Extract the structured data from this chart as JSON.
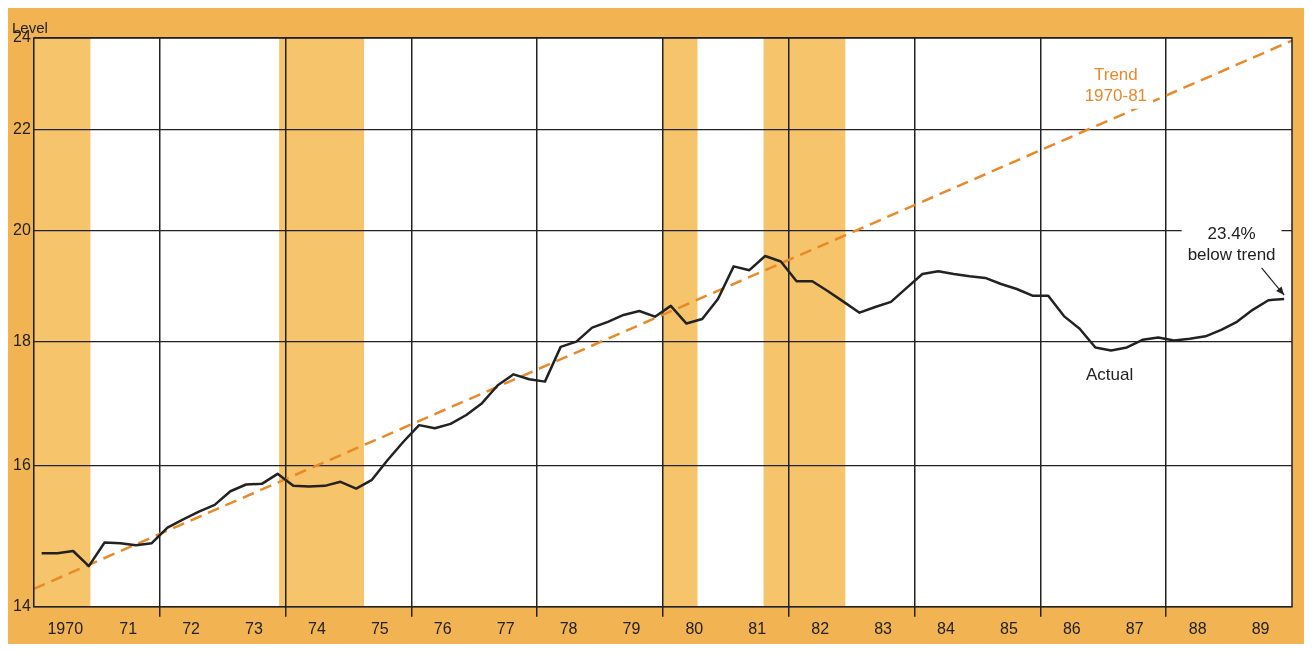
{
  "chart_data": {
    "type": "line",
    "ylabel": "Level",
    "log": "y",
    "ylim": [
      14,
      24
    ],
    "yticks": [
      14,
      16,
      18,
      20,
      22,
      24
    ],
    "xlim": [
      1969.5,
      1989.5
    ],
    "xticks": [
      {
        "value": 1970,
        "label": "1970"
      },
      {
        "value": 1971,
        "label": "71"
      },
      {
        "value": 1971.5,
        "label": null
      },
      {
        "value": 1972,
        "label": "72"
      },
      {
        "value": 1973,
        "label": "73"
      },
      {
        "value": 1973.5,
        "label": null
      },
      {
        "value": 1974,
        "label": "74"
      },
      {
        "value": 1975,
        "label": "75"
      },
      {
        "value": 1975.5,
        "label": null
      },
      {
        "value": 1976,
        "label": "76"
      },
      {
        "value": 1977,
        "label": "77"
      },
      {
        "value": 1977.5,
        "label": null
      },
      {
        "value": 1978,
        "label": "78"
      },
      {
        "value": 1979,
        "label": "79"
      },
      {
        "value": 1979.5,
        "label": null
      },
      {
        "value": 1980,
        "label": "80"
      },
      {
        "value": 1981,
        "label": "81"
      },
      {
        "value": 1981.5,
        "label": null
      },
      {
        "value": 1982,
        "label": "82"
      },
      {
        "value": 1983,
        "label": "83"
      },
      {
        "value": 1983.5,
        "label": null
      },
      {
        "value": 1984,
        "label": "84"
      },
      {
        "value": 1985,
        "label": "85"
      },
      {
        "value": 1985.5,
        "label": null
      },
      {
        "value": 1986,
        "label": "86"
      },
      {
        "value": 1987,
        "label": "87"
      },
      {
        "value": 1987.5,
        "label": null
      },
      {
        "value": 1988,
        "label": "88"
      },
      {
        "value": 1989,
        "label": "89"
      }
    ],
    "grid": true,
    "legend": false,
    "marker": "none",
    "bands": [
      {
        "axis": "x",
        "from": 1969.5,
        "to": 1970.4,
        "color": "#f6c46a"
      },
      {
        "axis": "x",
        "from": 1973.4,
        "to": 1974.75,
        "color": "#f6c46a"
      },
      {
        "axis": "x",
        "from": 1979.5,
        "to": 1980.05,
        "color": "#f6c46a"
      },
      {
        "axis": "x",
        "from": 1981.1,
        "to": 1982.4,
        "color": "#f6c46a"
      }
    ],
    "series": [
      {
        "color": "#222222",
        "line_style": "solid",
        "x": [
          1969.625,
          1969.875,
          1970.125,
          1970.375,
          1970.625,
          1970.875,
          1971.125,
          1971.375,
          1971.625,
          1971.875,
          1972.125,
          1972.375,
          1972.625,
          1972.875,
          1973.125,
          1973.375,
          1973.625,
          1973.875,
          1974.125,
          1974.375,
          1974.625,
          1974.875,
          1975.125,
          1975.375,
          1975.625,
          1975.875,
          1976.125,
          1976.375,
          1976.625,
          1976.875,
          1977.125,
          1977.375,
          1977.625,
          1977.875,
          1978.125,
          1978.375,
          1978.625,
          1978.875,
          1979.125,
          1979.375,
          1979.625,
          1979.875,
          1980.125,
          1980.375,
          1980.625,
          1980.875,
          1981.125,
          1981.375,
          1981.625,
          1981.875,
          1982.125,
          1982.375,
          1982.625,
          1982.875,
          1983.125,
          1983.375,
          1983.625,
          1983.875,
          1984.125,
          1984.375,
          1984.625,
          1984.875,
          1985.125,
          1985.375,
          1985.625,
          1985.875,
          1986.125,
          1986.375,
          1986.625,
          1986.875,
          1987.125,
          1987.375,
          1987.625,
          1987.875,
          1988.125,
          1988.375,
          1988.625,
          1988.875,
          1989.125,
          1989.375
        ],
        "values": [
          14.73,
          14.73,
          14.76,
          14.55,
          14.88,
          14.87,
          14.84,
          14.87,
          15.09,
          15.21,
          15.32,
          15.42,
          15.62,
          15.72,
          15.73,
          15.88,
          15.7,
          15.69,
          15.7,
          15.76,
          15.66,
          15.79,
          16.09,
          16.37,
          16.63,
          16.58,
          16.65,
          16.79,
          16.98,
          17.27,
          17.45,
          17.37,
          17.33,
          17.91,
          18.0,
          18.24,
          18.34,
          18.46,
          18.53,
          18.43,
          18.62,
          18.31,
          18.39,
          18.74,
          19.33,
          19.26,
          19.52,
          19.42,
          19.06,
          19.06,
          18.88,
          18.69,
          18.5,
          18.6,
          18.69,
          18.94,
          19.19,
          19.24,
          19.19,
          19.15,
          19.12,
          19.01,
          18.92,
          18.8,
          18.8,
          18.44,
          18.22,
          17.9,
          17.85,
          17.9,
          18.03,
          18.07,
          18.02,
          18.05,
          18.09,
          18.2,
          18.34,
          18.55,
          18.72,
          18.74
        ]
      },
      {
        "color": "#e8892a",
        "line_style": "dashed",
        "x": [
          1969.5,
          1989.5
        ],
        "values": [
          14.24,
          23.94
        ]
      }
    ],
    "annotations": [
      "Trend\n1970-81",
      "Actual",
      {
        "text": "23.4%\nbelow trend",
        "x": 1989.375,
        "y": 18.74
      }
    ]
  }
}
